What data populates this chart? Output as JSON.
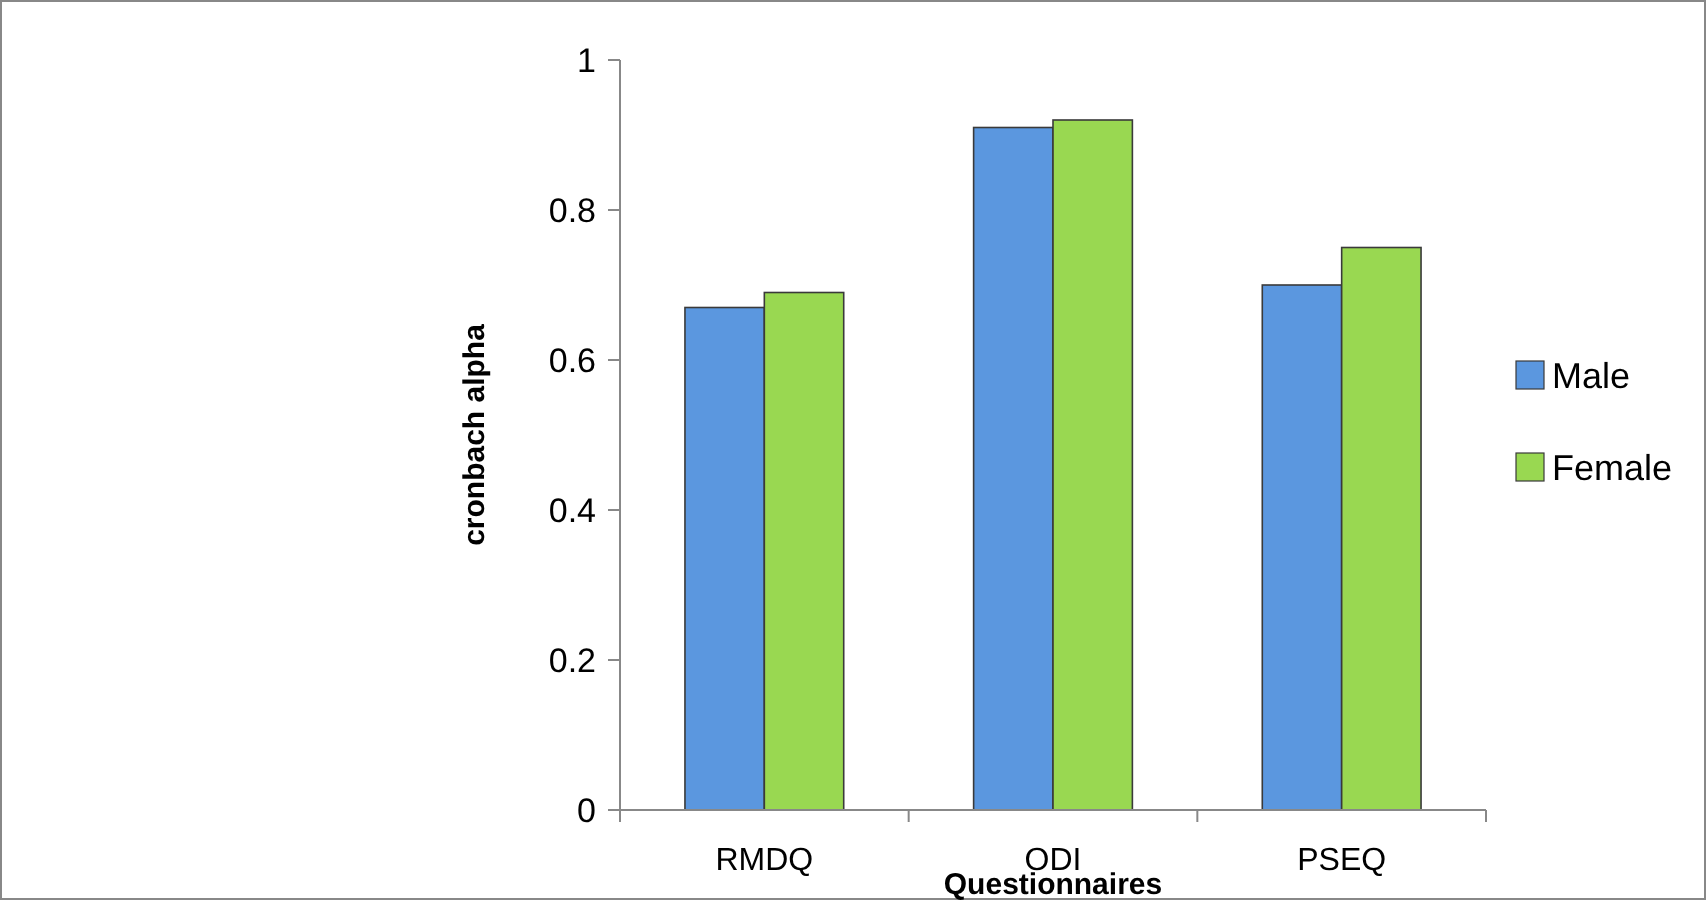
{
  "chart_data": {
    "type": "bar",
    "xlabel": "Questionnaires",
    "ylabel": "cronbach alpha",
    "categories": [
      "RMDQ",
      "ODI",
      "PSEQ"
    ],
    "series": [
      {
        "name": "Male",
        "color": "#5b97df",
        "values": [
          0.67,
          0.91,
          0.7
        ]
      },
      {
        "name": "Female",
        "color": "#99d851",
        "values": [
          0.69,
          0.92,
          0.75
        ]
      }
    ],
    "ylim": [
      0,
      1
    ],
    "yticks": [
      0,
      0.2,
      0.4,
      0.6,
      0.8,
      1
    ],
    "legend": "right",
    "grid": false
  }
}
